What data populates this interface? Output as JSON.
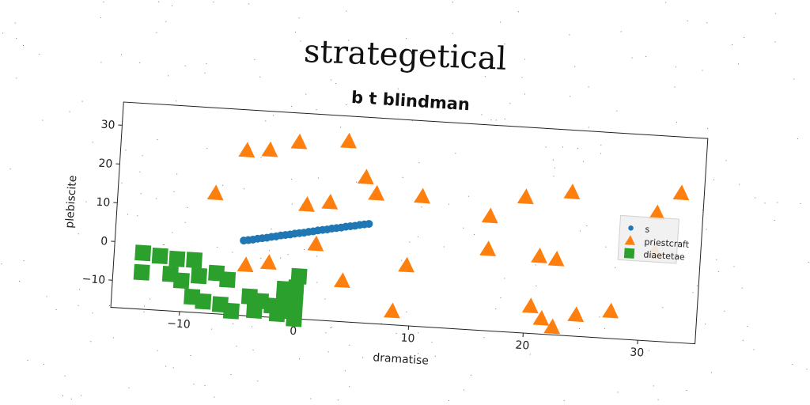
{
  "page": {
    "title": "strategetical"
  },
  "chart_data": {
    "type": "scatter",
    "subtitle": "b t blindman",
    "xlabel": "dramatise",
    "ylabel": "plebiscite",
    "xlim": [
      -16,
      35
    ],
    "ylim": [
      -17,
      36
    ],
    "xticks": [
      -10,
      0,
      10,
      20,
      30
    ],
    "yticks": [
      -10,
      0,
      10,
      20,
      30
    ],
    "xtick_labels": [
      "−10",
      "0",
      "10",
      "20",
      "30"
    ],
    "ytick_labels": [
      "−10",
      "0",
      "10",
      "20",
      "30"
    ],
    "grid": false,
    "legend_position": "center-right",
    "series": [
      {
        "name": "s",
        "marker": "circle",
        "color": "#1f77b4",
        "points": [
          [
            -4.8,
            2.3
          ],
          [
            -4.4,
            2.5
          ],
          [
            -4.0,
            2.7
          ],
          [
            -3.6,
            3.0
          ],
          [
            -3.2,
            3.2
          ],
          [
            -2.8,
            3.4
          ],
          [
            -2.4,
            3.7
          ],
          [
            -2.0,
            3.9
          ],
          [
            -1.6,
            4.2
          ],
          [
            -1.2,
            4.4
          ],
          [
            -0.8,
            4.6
          ],
          [
            -0.4,
            4.9
          ],
          [
            0.0,
            5.1
          ],
          [
            0.4,
            5.3
          ],
          [
            0.8,
            5.6
          ],
          [
            1.2,
            5.8
          ],
          [
            1.6,
            6.1
          ],
          [
            2.0,
            6.3
          ],
          [
            2.4,
            6.5
          ],
          [
            2.8,
            6.8
          ],
          [
            3.2,
            7.0
          ],
          [
            3.6,
            7.2
          ],
          [
            4.0,
            7.5
          ],
          [
            4.4,
            7.7
          ],
          [
            4.8,
            7.9
          ],
          [
            5.2,
            8.2
          ],
          [
            5.6,
            8.4
          ],
          [
            6.0,
            8.6
          ]
        ]
      },
      {
        "name": "priestcraft",
        "marker": "triangle",
        "color": "#ff7f0e",
        "points": [
          [
            -7.5,
            14
          ],
          [
            -5,
            25.5
          ],
          [
            -3,
            26
          ],
          [
            -0.5,
            28.5
          ],
          [
            0.5,
            12.5
          ],
          [
            2.5,
            13.5
          ],
          [
            3.8,
            29.5
          ],
          [
            5.5,
            20.5
          ],
          [
            6.5,
            16.5
          ],
          [
            10.5,
            16.5
          ],
          [
            16.5,
            12.5
          ],
          [
            19.5,
            18
          ],
          [
            23.5,
            20
          ],
          [
            31,
            16
          ],
          [
            33,
            21.5
          ],
          [
            -4.5,
            -4
          ],
          [
            -2.5,
            -3
          ],
          [
            1.5,
            2.5
          ],
          [
            4,
            -6.5
          ],
          [
            9.5,
            -1.5
          ],
          [
            16.5,
            4
          ],
          [
            21,
            3
          ],
          [
            22.5,
            2.5
          ],
          [
            20.5,
            -10
          ],
          [
            21.5,
            -13
          ],
          [
            22.5,
            -15
          ],
          [
            24.5,
            -11.5
          ],
          [
            27.5,
            -10
          ],
          [
            8.5,
            -13.5
          ],
          [
            31,
            6
          ]
        ]
      },
      {
        "name": "diaetetae",
        "marker": "square",
        "color": "#2ca02c",
        "points": [
          [
            -13.5,
            -2.5
          ],
          [
            -12,
            -3
          ],
          [
            -10.5,
            -3.5
          ],
          [
            -9,
            -3.5
          ],
          [
            -13.5,
            -7.5
          ],
          [
            -11,
            -7.5
          ],
          [
            -10,
            -9
          ],
          [
            -8.5,
            -7.5
          ],
          [
            -7,
            -6.5
          ],
          [
            -6,
            -8
          ],
          [
            -9,
            -13
          ],
          [
            -8,
            -14
          ],
          [
            -6.5,
            -14.5
          ],
          [
            -5.5,
            -16
          ],
          [
            -4,
            -12
          ],
          [
            -3,
            -13
          ],
          [
            -3.5,
            -15.5
          ],
          [
            -2,
            -14
          ],
          [
            -1.5,
            -16
          ],
          [
            -1,
            -12
          ],
          [
            -0.5,
            -15
          ],
          [
            0,
            -13
          ],
          [
            -0.5,
            -11
          ],
          [
            0,
            -9
          ],
          [
            0,
            -10.5
          ],
          [
            -1,
            -9.5
          ],
          [
            0.2,
            -6
          ],
          [
            0,
            -17
          ]
        ]
      }
    ]
  }
}
